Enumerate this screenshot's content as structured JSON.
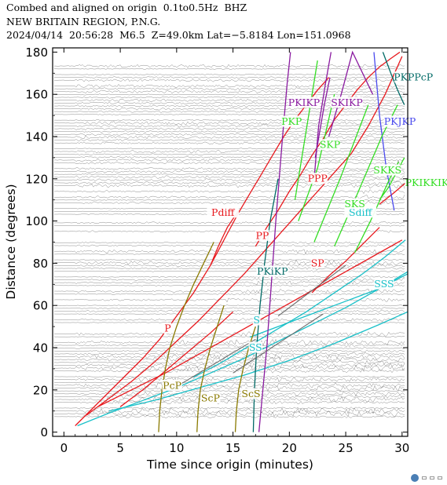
{
  "header": {
    "line1": "Combed and aligned on origin  0.1to0.5Hz  BHZ",
    "line2": "NEW BRITAIN REGION, P.N.G.",
    "line3": "2024/04/14  20:56:28  M6.5  Z=49.0km Lat=−5.8184 Lon=151.0968"
  },
  "chart_data": {
    "type": "line",
    "xlabel": "Time since origin (minutes)",
    "ylabel": "Distance (degrees)",
    "xlim": [
      -1,
      30.5
    ],
    "ylim": [
      -2,
      182
    ],
    "xticks": [
      0,
      5,
      10,
      15,
      20,
      25,
      30
    ],
    "yticks": [
      0,
      20,
      40,
      60,
      80,
      100,
      120,
      140,
      160,
      180
    ],
    "colors": {
      "red": "#e8191e",
      "cyan": "#18c0c8",
      "olive": "#8a7a00",
      "purple": "#8a1aa0",
      "green": "#33dd22",
      "teal": "#006a66",
      "blue": "#4a4aee",
      "gray": "#6a6a6a"
    },
    "phase_labels": [
      {
        "text": "P",
        "x": 9.2,
        "y": 48,
        "color": "red"
      },
      {
        "text": "Pdiff",
        "x": 14.1,
        "y": 103,
        "color": "red"
      },
      {
        "text": "PP",
        "x": 17.6,
        "y": 92,
        "color": "red"
      },
      {
        "text": "PPP",
        "x": 22.5,
        "y": 119,
        "color": "red"
      },
      {
        "text": "SP",
        "x": 22.5,
        "y": 79,
        "color": "red"
      },
      {
        "text": "PcP",
        "x": 9.6,
        "y": 21,
        "color": "olive"
      },
      {
        "text": "ScP",
        "x": 13.0,
        "y": 15,
        "color": "olive"
      },
      {
        "text": "ScS",
        "x": 16.6,
        "y": 17,
        "color": "olive"
      },
      {
        "text": "PKiKP",
        "x": 18.5,
        "y": 75,
        "color": "teal"
      },
      {
        "text": "PKPPcP",
        "x": 31.0,
        "y": 167,
        "color": "teal"
      },
      {
        "text": "S",
        "x": 17.1,
        "y": 52,
        "color": "cyan"
      },
      {
        "text": "SS",
        "x": 17.0,
        "y": 39,
        "color": "cyan"
      },
      {
        "text": "SSS",
        "x": 28.4,
        "y": 69,
        "color": "cyan"
      },
      {
        "text": "Sdiff",
        "x": 26.3,
        "y": 103,
        "color": "cyan"
      },
      {
        "text": "PKIKP",
        "x": 21.3,
        "y": 155,
        "color": "purple"
      },
      {
        "text": "SKIKP",
        "x": 25.1,
        "y": 155,
        "color": "purple"
      },
      {
        "text": "PKJKP",
        "x": 29.8,
        "y": 146,
        "color": "blue"
      },
      {
        "text": "PKP",
        "x": 20.2,
        "y": 146,
        "color": "green"
      },
      {
        "text": "SKP",
        "x": 23.6,
        "y": 135,
        "color": "green"
      },
      {
        "text": "SKKS",
        "x": 28.7,
        "y": 123,
        "color": "green"
      },
      {
        "text": "PKIKKIK",
        "x": 32.2,
        "y": 117,
        "color": "green"
      },
      {
        "text": "SKS",
        "x": 25.8,
        "y": 107,
        "color": "green"
      }
    ],
    "series": [
      {
        "color": "red",
        "x": [
          1.0,
          2.5,
          4.0,
          5.5,
          7.0,
          8.5,
          10.0,
          11.5,
          13.0,
          13.7,
          14.6,
          15.5,
          16.5,
          17.5,
          18.5,
          19.5,
          20.5,
          21.5,
          22.5,
          23.5
        ],
        "y": [
          3,
          11,
          19,
          27,
          35,
          44,
          55,
          66,
          79,
          86,
          95,
          104,
          113,
          122,
          131,
          140,
          148,
          155,
          162,
          168
        ]
      },
      {
        "color": "red",
        "x": [
          13.0,
          13.7,
          14.5,
          15.5
        ],
        "y": [
          79,
          88,
          97,
          105
        ]
      },
      {
        "color": "red",
        "x": [
          2.0,
          4.0,
          6.0,
          8.0,
          10.0,
          12.0,
          14.0,
          16.0,
          18.0,
          20.0,
          22.0,
          23.0,
          24.0,
          25.5,
          27.0,
          28.5,
          30.0
        ],
        "y": [
          8,
          16,
          24,
          33,
          43,
          53,
          64,
          75,
          87,
          99,
          111,
          117,
          123,
          132,
          145,
          160,
          178
        ]
      },
      {
        "color": "red",
        "x": [
          17.0,
          18.0,
          19.0,
          20.0,
          21.0,
          22.0,
          23.0,
          24.0,
          25.0,
          26.0,
          27.0,
          28.0,
          29.0,
          29.8
        ],
        "y": [
          88,
          97,
          105,
          114,
          122,
          131,
          139,
          148,
          155,
          162,
          168,
          173,
          177,
          180
        ]
      },
      {
        "color": "red",
        "x": [
          22.0,
          23.5,
          25.0,
          26.5,
          28.0
        ],
        "y": [
          66,
          74,
          81,
          89,
          97
        ]
      },
      {
        "color": "red",
        "x": [
          3.0,
          6.0,
          9.0,
          12.0,
          15.0,
          18.0,
          21.0,
          24.0,
          27.0,
          30.0
        ],
        "y": [
          12,
          20,
          28,
          37,
          46,
          55,
          64,
          73,
          82,
          91
        ]
      },
      {
        "color": "red",
        "x": [
          5.0,
          7.0,
          9.0,
          11.0,
          13.0,
          15.0
        ],
        "y": [
          12,
          20,
          29,
          38,
          47,
          57
        ]
      },
      {
        "color": "red",
        "x": [
          28.0,
          29.2,
          30.3
        ],
        "y": [
          108,
          113,
          118
        ]
      },
      {
        "color": "cyan",
        "x": [
          1.2,
          4.0,
          7.0,
          10.0,
          13.0,
          16.0,
          19.0,
          22.0,
          25.0,
          28.0,
          30.5
        ],
        "y": [
          3,
          9,
          15,
          21,
          28,
          35,
          43,
          51,
          59,
          68,
          76
        ]
      },
      {
        "color": "cyan",
        "x": [
          11.5,
          14.0,
          16.5,
          19.0,
          21.5,
          24.0,
          26.5,
          28.5,
          30.3
        ],
        "y": [
          26,
          33,
          41,
          49,
          57,
          66,
          75,
          83,
          91
        ]
      },
      {
        "color": "cyan",
        "x": [
          16.5,
          19.0,
          22.0,
          25.0,
          28.0,
          30.5
        ],
        "y": [
          45,
          50,
          56,
          62,
          68,
          75
        ]
      },
      {
        "color": "cyan",
        "x": [
          4.0,
          8.0,
          12.0,
          16.0,
          20.0,
          24.0,
          28.0,
          30.5
        ],
        "y": [
          10,
          15,
          21,
          27,
          34,
          42,
          51,
          57
        ]
      },
      {
        "color": "olive",
        "x": [
          8.4,
          8.5,
          8.7,
          9.0,
          9.4,
          10.0,
          10.7,
          11.5,
          12.4,
          13.3
        ],
        "y": [
          0,
          10,
          20,
          30,
          40,
          50,
          60,
          70,
          80,
          90
        ]
      },
      {
        "color": "olive",
        "x": [
          11.8,
          11.9,
          12.1,
          12.5,
          13.0,
          13.6,
          14.2
        ],
        "y": [
          0,
          10,
          20,
          30,
          40,
          50,
          60
        ]
      },
      {
        "color": "olive",
        "x": [
          15.2,
          15.3,
          15.5,
          15.9,
          16.4,
          17.0
        ],
        "y": [
          0,
          10,
          20,
          30,
          40,
          50
        ]
      },
      {
        "color": "teal",
        "x": [
          16.8,
          16.9,
          17.1,
          17.4,
          17.8,
          18.3,
          19.0
        ],
        "y": [
          0,
          20,
          40,
          60,
          80,
          100,
          120
        ]
      },
      {
        "color": "teal",
        "x": [
          28.3,
          29.0,
          29.6,
          30.2
        ],
        "y": [
          180,
          170,
          162,
          155
        ]
      },
      {
        "color": "purple",
        "x": [
          17.3,
          18.0,
          18.8,
          19.4,
          19.8,
          20.1
        ],
        "y": [
          0,
          40,
          100,
          140,
          165,
          180
        ]
      },
      {
        "color": "purple",
        "x": [
          22.2,
          22.6,
          23.2,
          23.7
        ],
        "y": [
          120,
          145,
          165,
          180
        ]
      },
      {
        "color": "purple",
        "x": [
          22.3,
          23.1,
          23.6
        ],
        "y": [
          130,
          155,
          168
        ]
      },
      {
        "color": "purple",
        "x": [
          23.5,
          24.6,
          25.6,
          27.4
        ],
        "y": [
          140,
          160,
          180,
          160
        ]
      },
      {
        "color": "blue",
        "x": [
          27.5,
          28.0,
          28.6,
          29.3
        ],
        "y": [
          180,
          150,
          125,
          105
        ]
      },
      {
        "color": "green",
        "x": [
          20.5,
          22.5
        ],
        "y": [
          110,
          176
        ]
      },
      {
        "color": "green",
        "x": [
          20.8,
          22.5,
          24.0
        ],
        "y": [
          100,
          125,
          160
        ]
      },
      {
        "color": "green",
        "x": [
          22.2,
          24.5,
          27.0
        ],
        "y": [
          90,
          120,
          155
        ]
      },
      {
        "color": "green",
        "x": [
          24.0,
          25.8,
          28.2,
          29.6
        ],
        "y": [
          88,
          110,
          140,
          155
        ]
      },
      {
        "color": "green",
        "x": [
          25.8,
          27.2,
          28.9,
          29.7
        ],
        "y": [
          85,
          100,
          120,
          128
        ]
      },
      {
        "color": "green",
        "x": [
          28.0,
          28.8,
          29.6,
          30.2
        ],
        "y": [
          110,
          116,
          124,
          130
        ]
      },
      {
        "color": "gray",
        "x": [
          15.0,
          17.0,
          19.0,
          21.0,
          23.0
        ],
        "y": [
          28,
          35,
          42,
          49,
          56
        ]
      },
      {
        "color": "gray",
        "x": [
          9.5,
          12.0,
          14.5,
          17.0
        ],
        "y": [
          20,
          28,
          36,
          44
        ]
      },
      {
        "color": "gray",
        "x": [
          19.0,
          21.0,
          23.0,
          25.0
        ],
        "y": [
          55,
          63,
          71,
          79
        ]
      }
    ]
  }
}
